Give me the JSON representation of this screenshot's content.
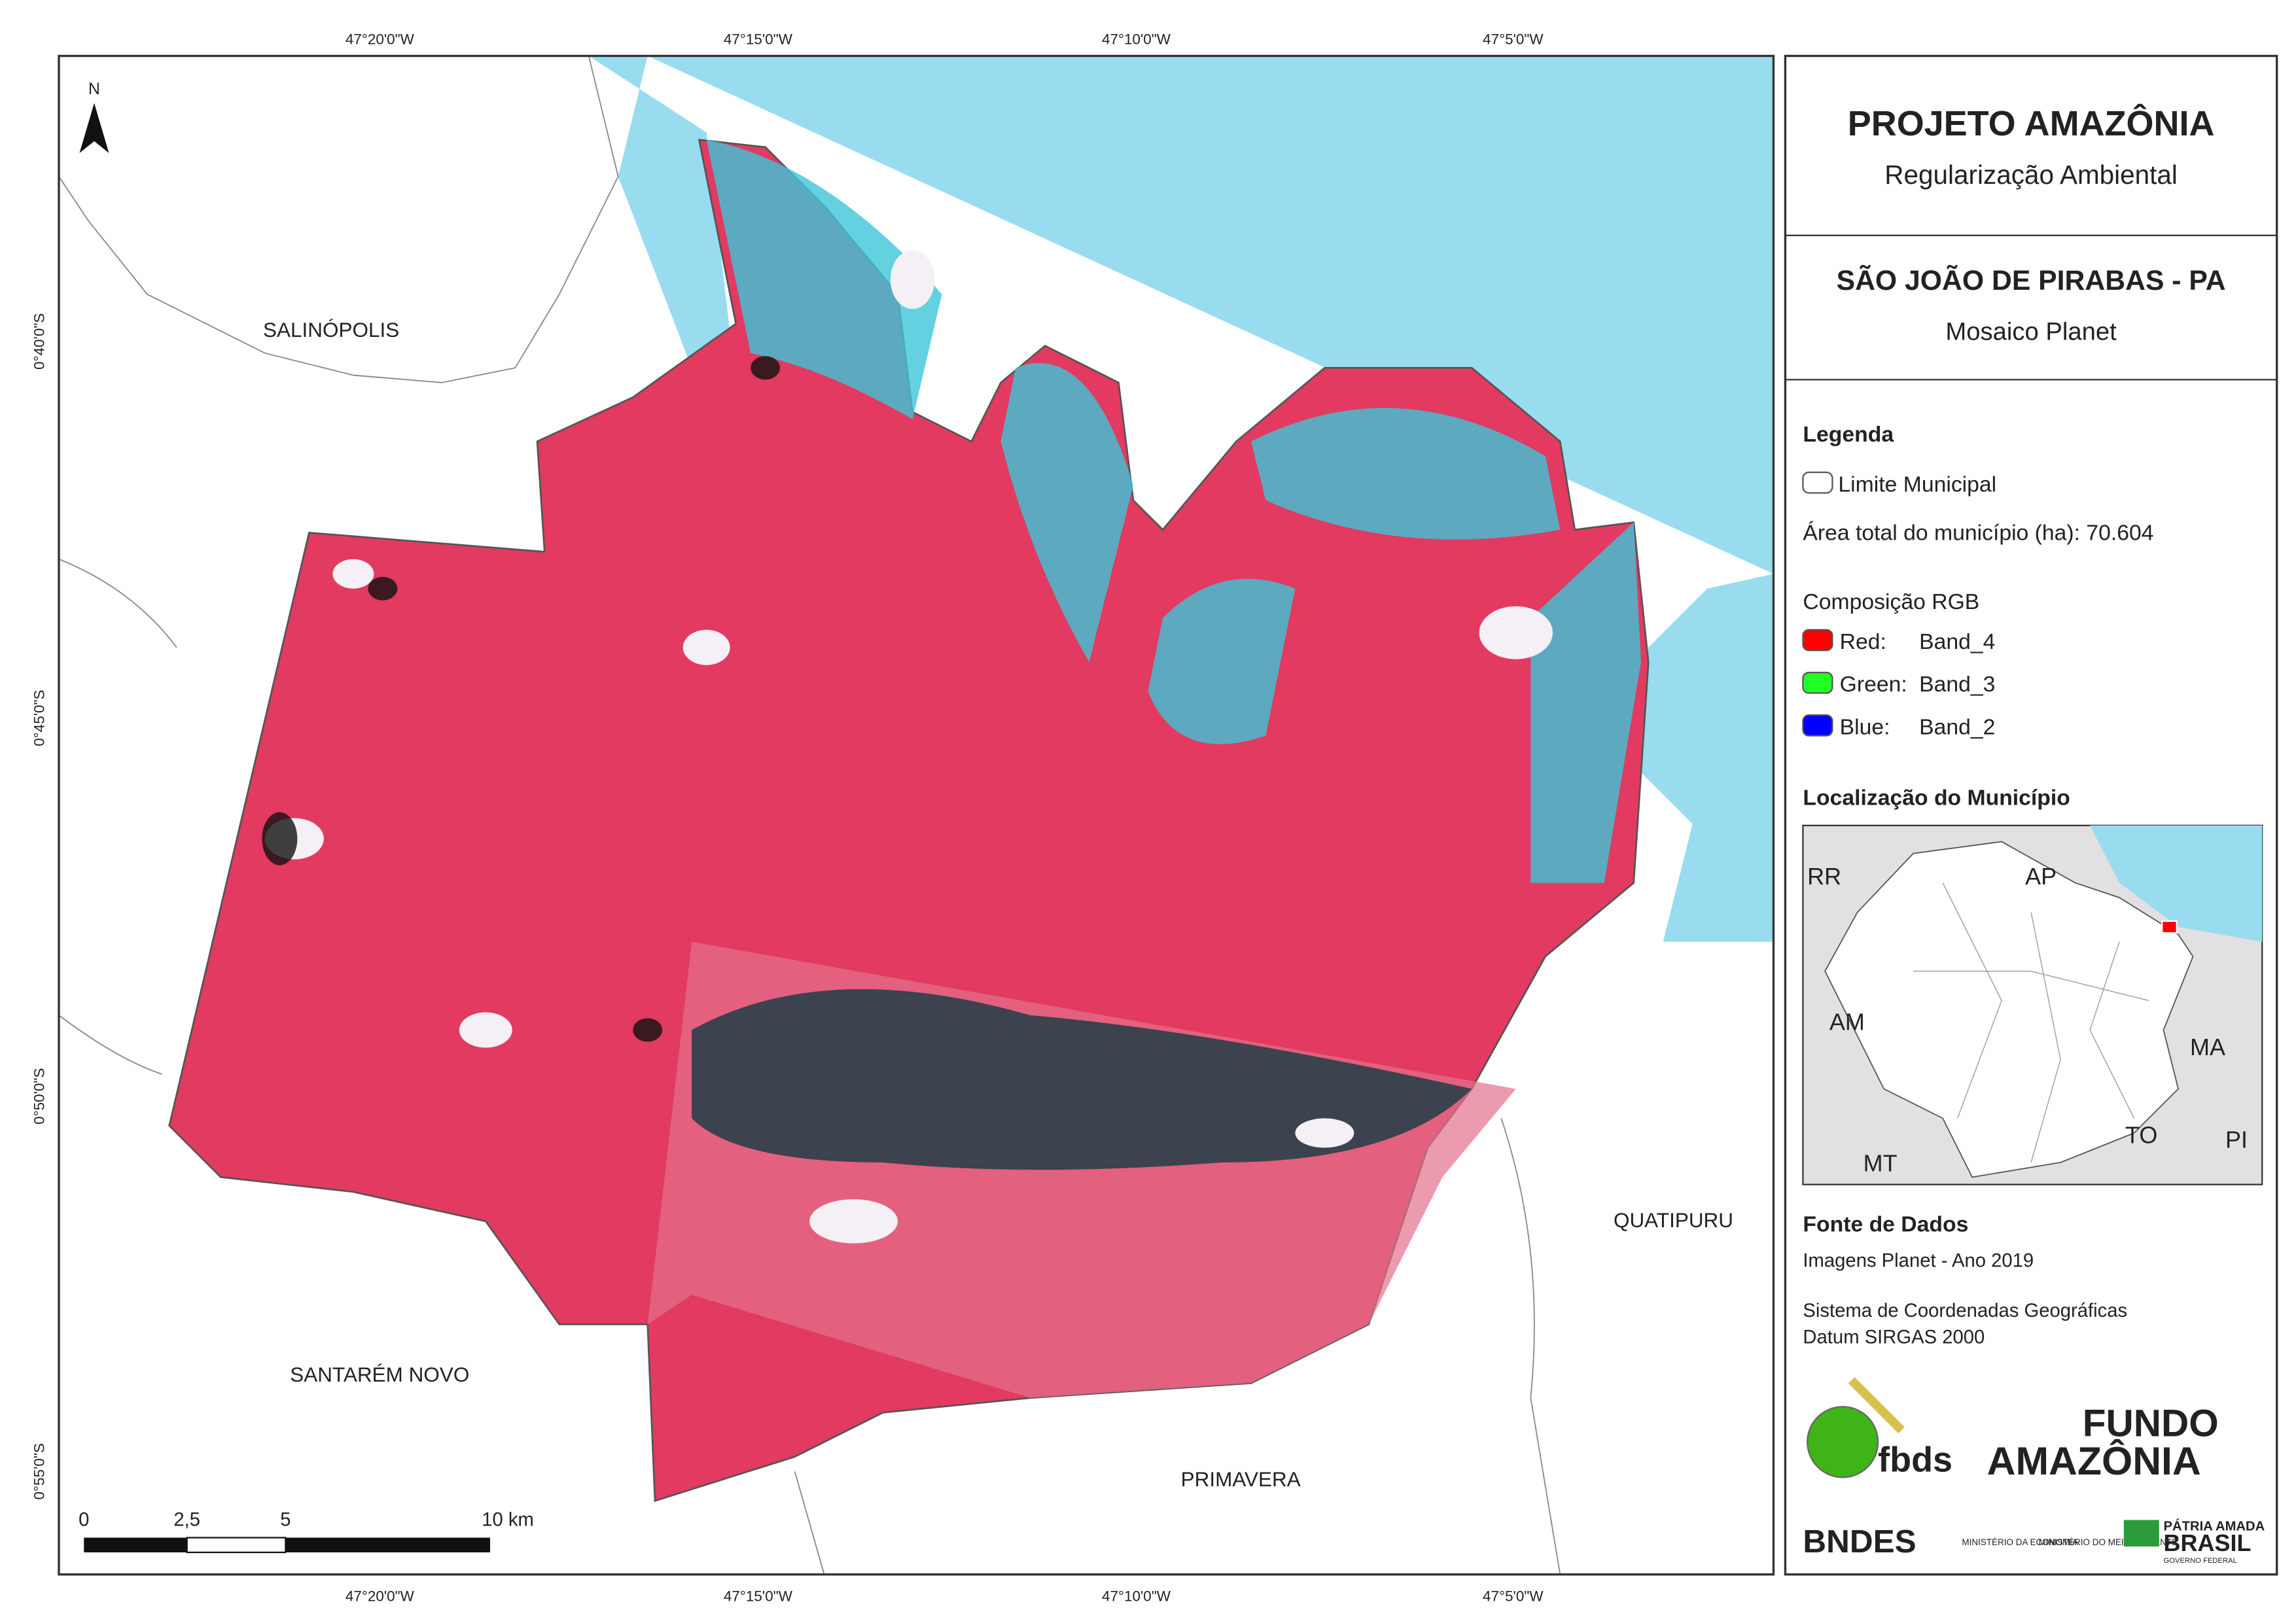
{
  "header": {
    "title": "PROJETO AMAZÔNIA",
    "subtitle": "Regularização Ambiental"
  },
  "map_title": {
    "title": "SÃO JOÃO DE PIRABAS - PA",
    "subtitle": "Mosaico Planet"
  },
  "legend": {
    "title": "Legenda",
    "boundary": "Limite Municipal",
    "area": "Área total do município (ha): 70.604",
    "rgb_title": "Composição RGB",
    "bands": [
      {
        "name": "Red:",
        "band": "Band_4"
      },
      {
        "name": "Green:",
        "band": "Band_3"
      },
      {
        "name": "Blue:",
        "band": "Band_2"
      }
    ]
  },
  "location": {
    "title": "Localização do Município",
    "labels": [
      "RR",
      "AP",
      "AM",
      "MA",
      "TO",
      "PI",
      "MT"
    ]
  },
  "sources": {
    "title": "Fonte de Dados",
    "images": "Imagens Planet - Ano 2019",
    "crs": "Sistema de Coordenadas Geográficas",
    "datum": "Datum SIRGAS 2000"
  },
  "logos": {
    "fbds": "fbds",
    "fundo": "FUNDO",
    "amazonia": "AMAZÔNIA",
    "bndes": "BNDES",
    "min_economia": "MINISTÉRIO DA ECONOMIA",
    "min_ambiente": "MINISTÉRIO DO MEIO AMBIENTE",
    "patria": "PÁTRIA AMADA",
    "brasil": "BRASIL",
    "governo": "GOVERNO FEDERAL"
  },
  "places": [
    "SALINÓPOLIS",
    "SANTARÉM NOVO",
    "PRIMAVERA",
    "QUATIPURU"
  ],
  "longitudes": [
    "47°20'0\"W",
    "47°15'0\"W",
    "47°10'0\"W",
    "47°5'0\"W"
  ],
  "latitudes": [
    "0°40'0\"S",
    "0°45'0\"S",
    "0°50'0\"S",
    "0°55'0\"S"
  ],
  "scale": [
    "0",
    "2,5",
    "5",
    "10 km"
  ],
  "north": "N"
}
